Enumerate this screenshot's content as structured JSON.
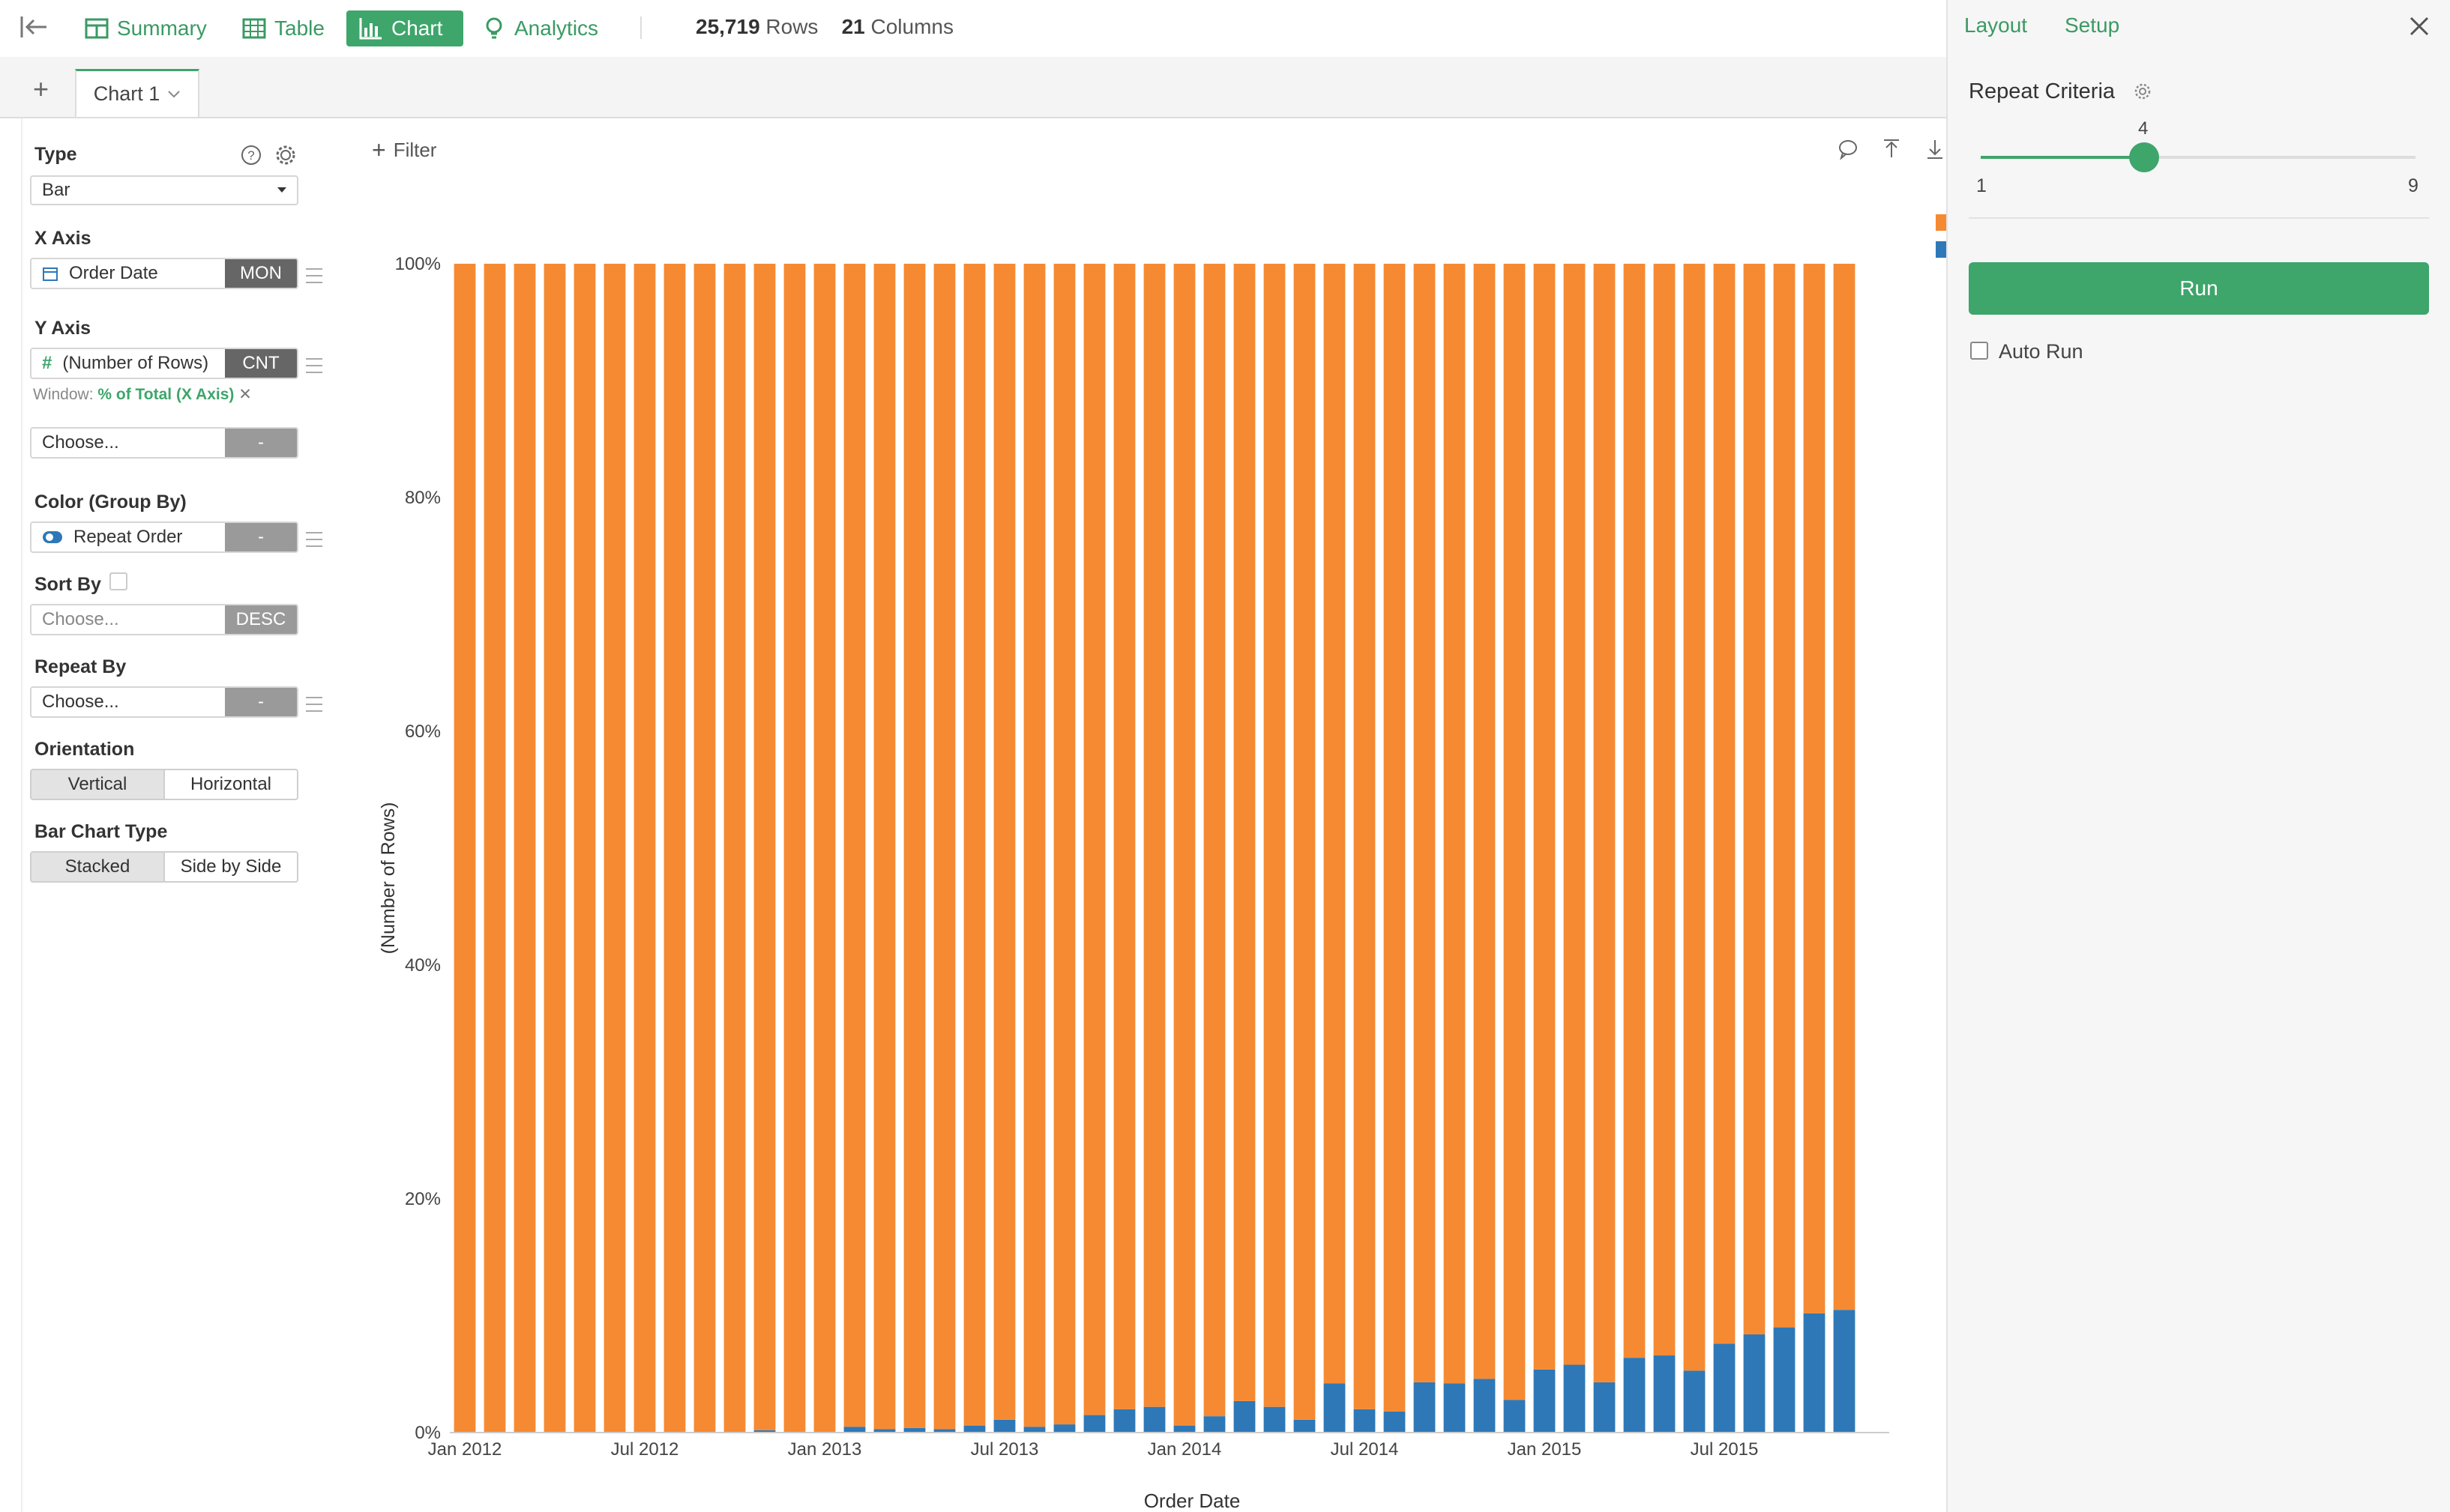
{
  "topbar": {
    "tabs": [
      {
        "label": "Summary",
        "icon": "summary-icon"
      },
      {
        "label": "Table",
        "icon": "table-icon"
      },
      {
        "label": "Chart",
        "icon": "bar-chart-icon"
      },
      {
        "label": "Analytics",
        "icon": "bulb-icon"
      }
    ],
    "active_tab": "Chart",
    "rows_count": "25,719",
    "rows_label": "Rows",
    "columns_count": "21",
    "columns_label": "Columns"
  },
  "chart_tabs": {
    "add_label": "+",
    "current": "Chart 1"
  },
  "left_panel": {
    "type_label": "Type",
    "type_value": "Bar",
    "x_axis_label": "X Axis",
    "x_axis_field": "Order Date",
    "x_axis_agg": "MON",
    "y_axis_label": "Y Axis",
    "y_axis_field": "(Number of Rows)",
    "y_axis_agg": "CNT",
    "window_label": "Window:",
    "window_value": "% of Total (X Axis)",
    "y2_placeholder": "Choose...",
    "y2_agg": "-",
    "color_label": "Color (Group By)",
    "color_field": "Repeat Order",
    "color_agg": "-",
    "sort_label": "Sort By",
    "sort_placeholder": "Choose...",
    "sort_agg": "DESC",
    "repeat_label": "Repeat By",
    "repeat_placeholder": "Choose...",
    "repeat_agg": "-",
    "orientation_label": "Orientation",
    "orientation_options": [
      "Vertical",
      "Horizontal"
    ],
    "orientation_selected": "Vertical",
    "bar_type_label": "Bar Chart Type",
    "bar_type_options": [
      "Stacked",
      "Side by Side"
    ],
    "bar_type_selected": "Stacked"
  },
  "chart_toolbar": {
    "filter_label": "Filter"
  },
  "colors": {
    "accent": "#3ea56b",
    "series_orange": "#f58a33",
    "series_blue": "#2e78b7"
  },
  "right_panel": {
    "tabs": [
      "Layout",
      "Setup"
    ],
    "repeat_criteria_label": "Repeat Criteria",
    "slider_value": 4,
    "slider_min": "1",
    "slider_max": "9",
    "run_label": "Run",
    "auto_run_label": "Auto Run",
    "auto_run_checked": false
  },
  "chart_data": {
    "type": "bar",
    "stacked": true,
    "xlabel": "Order Date",
    "ylabel": "(Number of Rows)",
    "ylim": [
      0,
      100
    ],
    "yticks": [
      "0%",
      "20%",
      "40%",
      "60%",
      "80%",
      "100%"
    ],
    "xtick_labels": [
      "Jan 2012",
      "Jul 2012",
      "Jan 2013",
      "Jul 2013",
      "Jan 2014",
      "Jul 2014",
      "Jan 2015",
      "Jul 2015"
    ],
    "xtick_indices": [
      0,
      6,
      12,
      18,
      24,
      30,
      36,
      42
    ],
    "categories": [
      "2012-01",
      "2012-02",
      "2012-03",
      "2012-04",
      "2012-05",
      "2012-06",
      "2012-07",
      "2012-08",
      "2012-09",
      "2012-10",
      "2012-11",
      "2012-12",
      "2013-01",
      "2013-02",
      "2013-03",
      "2013-04",
      "2013-05",
      "2013-06",
      "2013-07",
      "2013-08",
      "2013-09",
      "2013-10",
      "2013-11",
      "2013-12",
      "2014-01",
      "2014-02",
      "2014-03",
      "2014-04",
      "2014-05",
      "2014-06",
      "2014-07",
      "2014-08",
      "2014-09",
      "2014-10",
      "2014-11",
      "2014-12",
      "2015-01",
      "2015-02",
      "2015-03",
      "2015-04",
      "2015-05",
      "2015-06",
      "2015-07",
      "2015-08",
      "2015-09",
      "2015-10",
      "2015-11",
      "2015-12"
    ],
    "series": [
      {
        "color": "#2e78b7",
        "values": [
          0,
          0,
          0,
          0,
          0,
          0,
          0,
          0,
          0,
          0,
          0.2,
          0,
          0,
          0.5,
          0.3,
          0.4,
          0.3,
          0.6,
          1.1,
          0.5,
          0.7,
          1.5,
          2,
          2.2,
          0.6,
          1.4,
          2.7,
          2.2,
          1.1,
          4.2,
          2,
          1.8,
          4.3,
          4.2,
          4.6,
          2.8,
          5.4,
          5.8,
          4.3,
          6.4,
          6.6,
          5.3,
          7.6,
          8.4,
          9,
          10.2,
          10.5,
          0
        ]
      },
      {
        "color": "#f58a33",
        "values": [
          100,
          100,
          100,
          100,
          100,
          100,
          100,
          100,
          100,
          100,
          99.8,
          100,
          100,
          99.5,
          99.7,
          99.6,
          99.7,
          99.4,
          98.9,
          99.5,
          99.3,
          98.5,
          98,
          97.8,
          99.4,
          98.6,
          97.3,
          97.8,
          98.9,
          95.8,
          98,
          98.2,
          95.7,
          95.8,
          95.4,
          97.2,
          94.6,
          94.2,
          95.7,
          93.6,
          93.4,
          94.7,
          92.4,
          91.6,
          91,
          89.8,
          89.5,
          0
        ]
      }
    ]
  }
}
